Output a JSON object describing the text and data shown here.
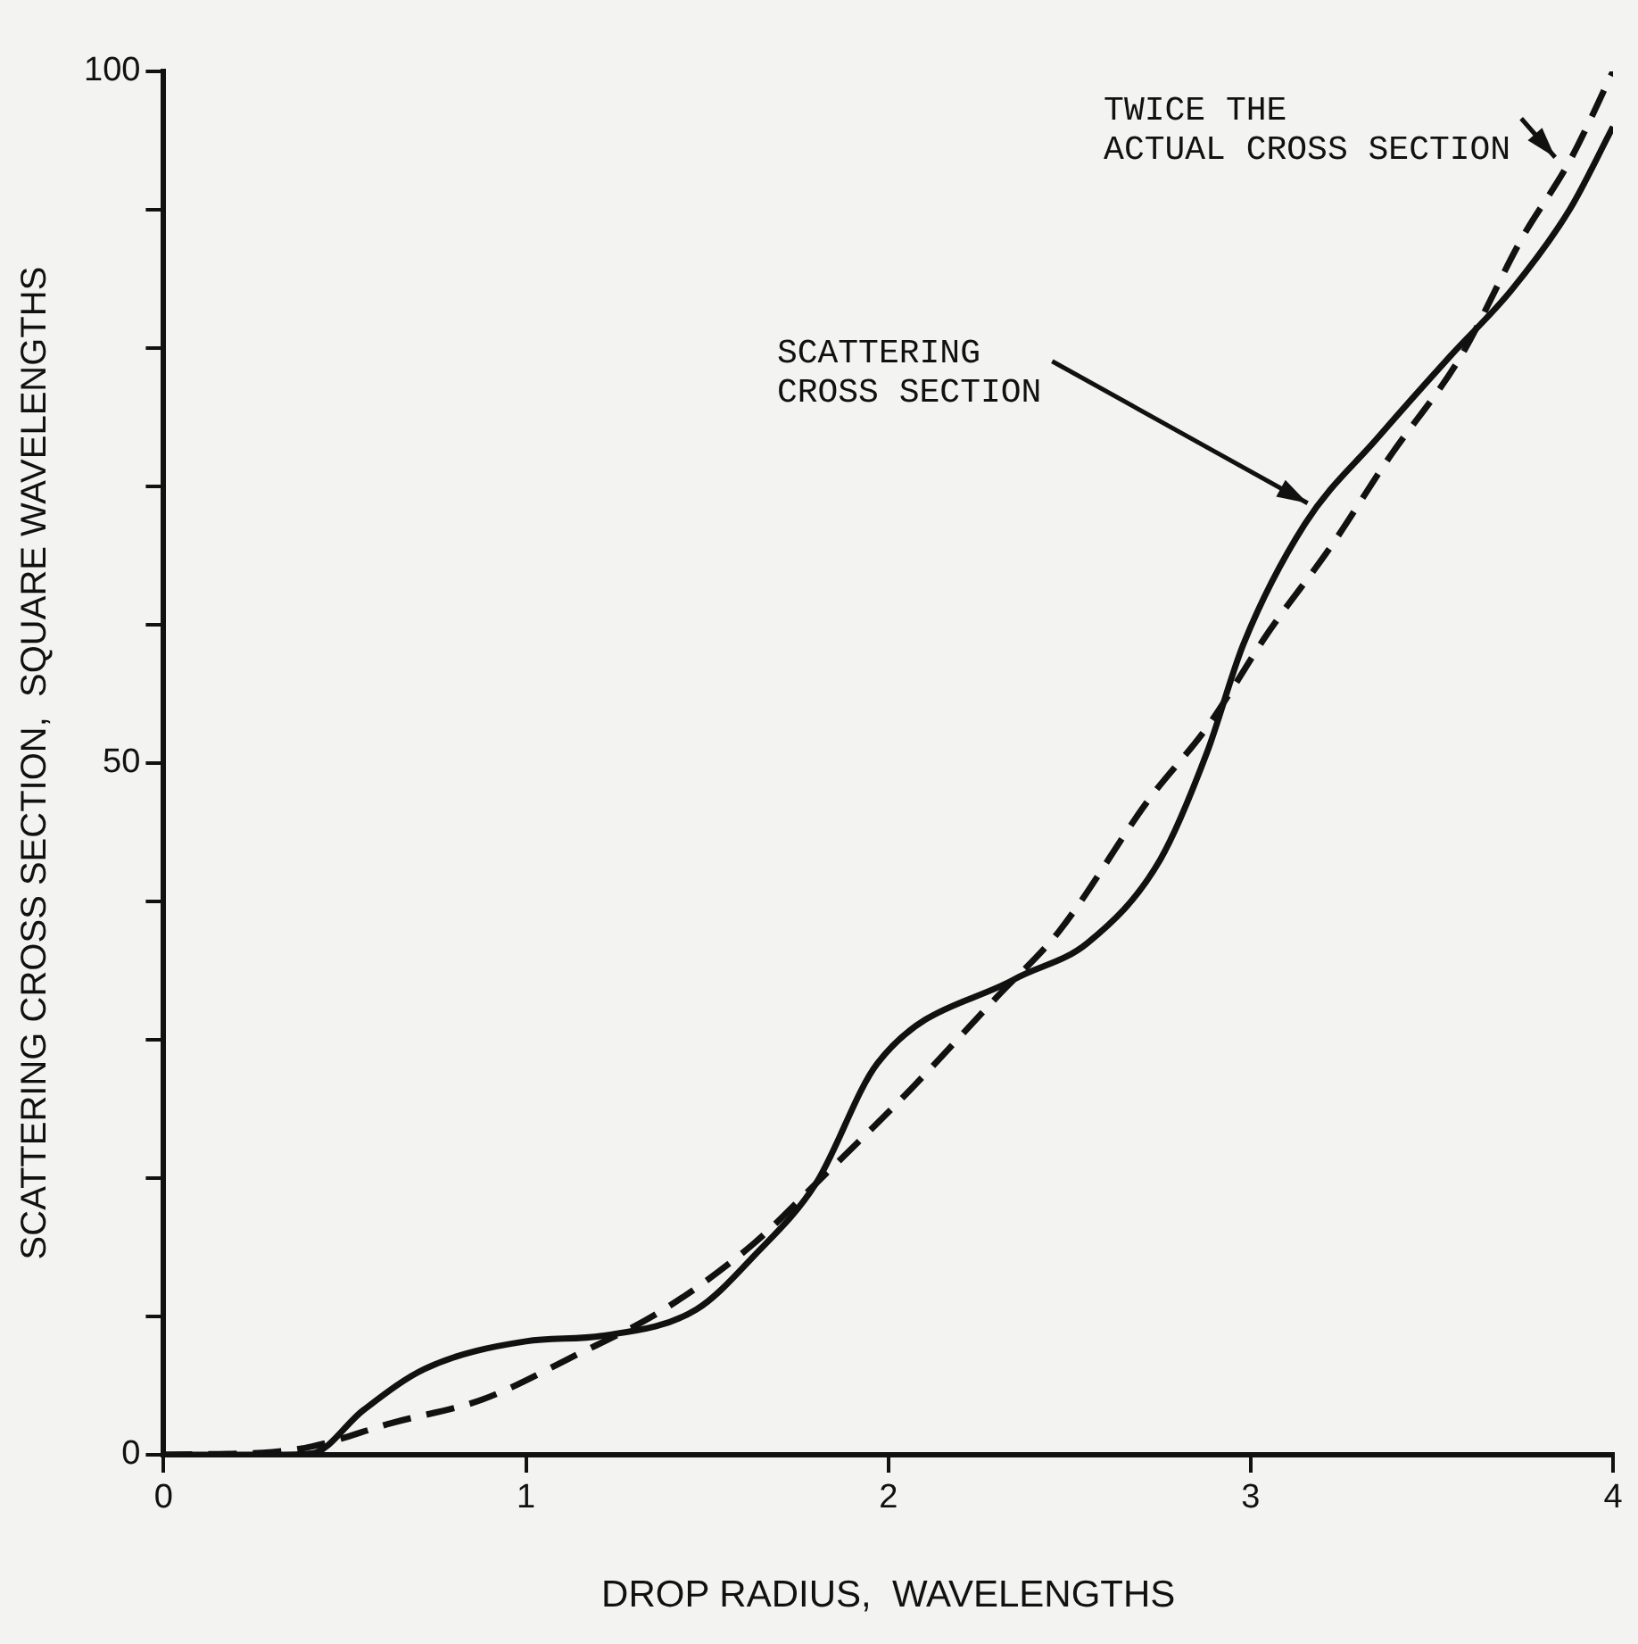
{
  "chart_data": {
    "type": "line",
    "xlabel": "DROP RADIUS,  WAVELENGTHS",
    "ylabel": "SCATTERING CROSS SECTION,  SQUARE WAVELENGTHS",
    "xlim": [
      0,
      4
    ],
    "xticks": [
      0,
      1,
      2,
      3,
      4
    ],
    "ylim": [
      0,
      100
    ],
    "yticks": [
      0,
      {
        "value": 10,
        "label": null
      },
      {
        "value": 20,
        "label": null
      },
      {
        "value": 30,
        "label": null
      },
      {
        "value": 40,
        "label": null
      },
      50,
      {
        "value": 60,
        "label": null
      },
      {
        "value": 70,
        "label": null
      },
      {
        "value": 80,
        "label": null
      },
      {
        "value": 90,
        "label": null
      },
      100
    ],
    "grid": false,
    "legend": false,
    "marker": "none",
    "series": [
      {
        "color": "#111111",
        "line_style": "solid",
        "x": [
          0,
          0.3,
          0.41,
          0.55,
          0.72,
          1.0,
          1.21,
          1.47,
          1.63,
          1.8,
          1.97,
          2.35,
          2.55,
          2.75,
          2.88,
          2.98,
          3.15,
          3.35,
          3.55,
          3.72,
          3.88,
          4.0
        ],
        "values": [
          0,
          0,
          0.1,
          3.2,
          6.2,
          8.2,
          8.6,
          10.5,
          14.4,
          19.6,
          28.3,
          34.4,
          37,
          43,
          50.8,
          58.6,
          67.3,
          73.5,
          79.4,
          84.2,
          90,
          96
        ]
      },
      {
        "color": "#111111",
        "line_style": "dashed",
        "x": [
          0,
          0.3,
          0.41,
          0.63,
          0.88,
          1.13,
          1.38,
          1.63,
          1.8,
          2.05,
          2.3,
          2.47,
          2.72,
          2.88,
          3.05,
          3.22,
          3.38,
          3.58,
          3.75,
          3.88,
          4.0
        ],
        "values": [
          0,
          0.2,
          0.6,
          2.3,
          4.0,
          7.1,
          10.5,
          15.3,
          19.6,
          26.1,
          33.1,
          37.8,
          47.4,
          52.6,
          59.5,
          65.6,
          72,
          79.4,
          88,
          93.5,
          100
        ]
      }
    ],
    "annotations": [
      {
        "text": "TWICE THE\nACTUAL CROSS SECTION",
        "x": 3.85,
        "y": 93.5
      },
      {
        "text": "SCATTERING\nCROSS SECTION",
        "x": 3.17,
        "y": 68.6
      }
    ]
  }
}
